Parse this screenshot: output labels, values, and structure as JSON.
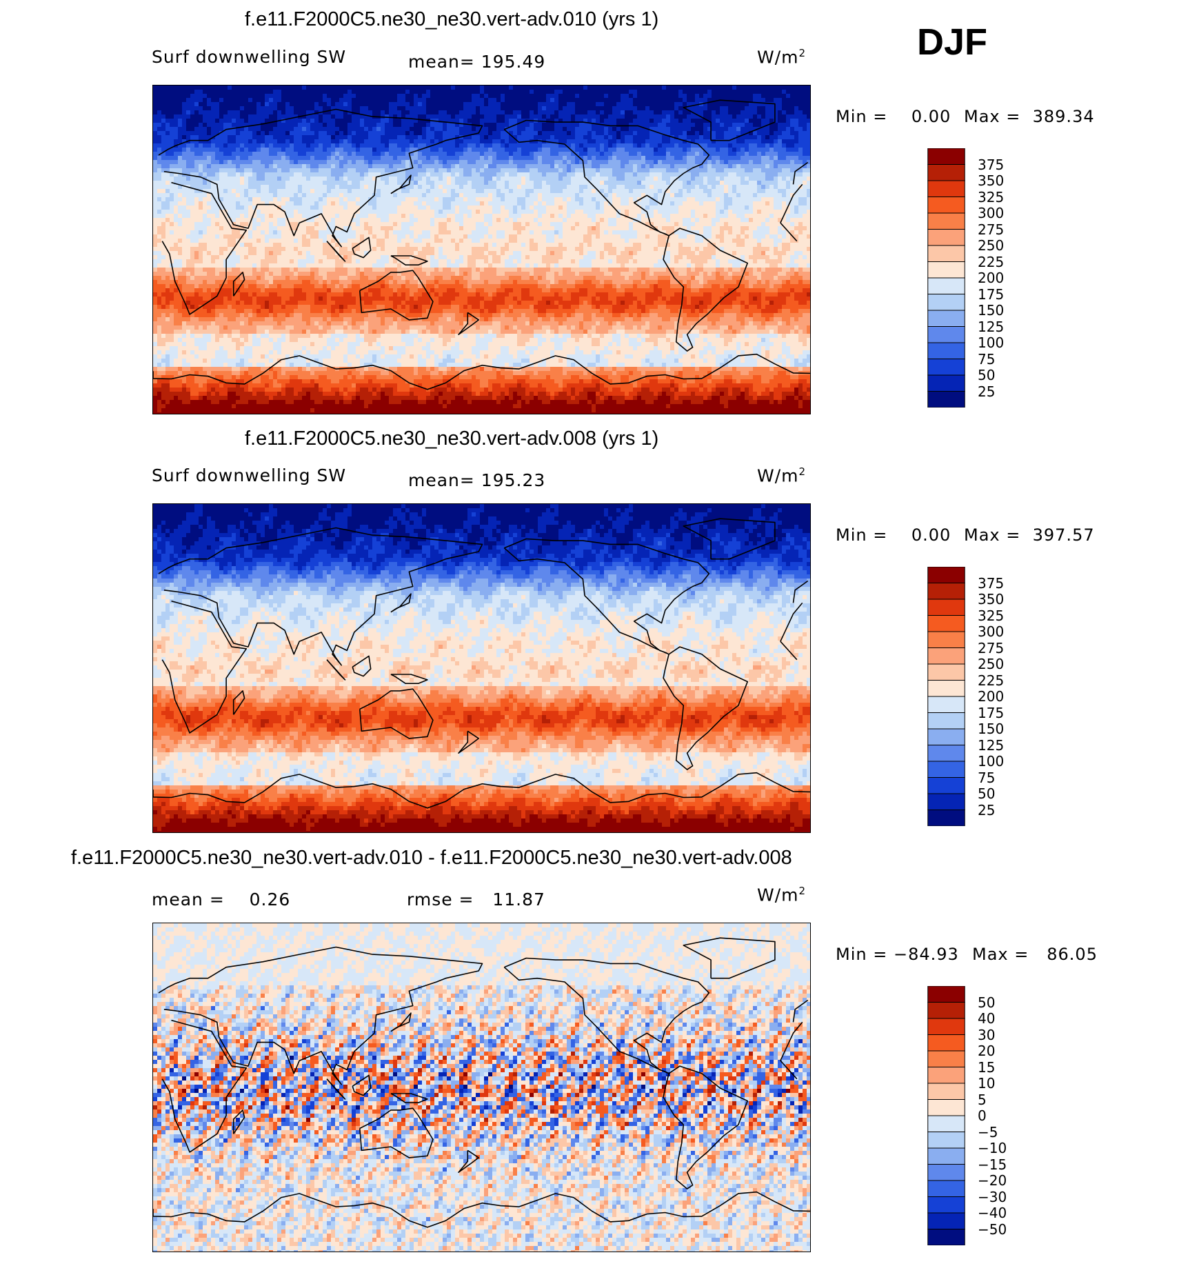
{
  "season": "DJF",
  "panels": [
    {
      "title": "f.e11.F2000C5.ne30_ne30.vert-adv.010 (yrs 1)",
      "variable": "Surf downwelling SW",
      "stat_text": "mean=  195.49",
      "units": "W/m",
      "units_sup": "2",
      "min_label": "Min =",
      "min_value": "0.00",
      "max_label": "Max =",
      "max_value": "389.34",
      "field": "mean"
    },
    {
      "title": "f.e11.F2000C5.ne30_ne30.vert-adv.008 (yrs 1)",
      "variable": "Surf downwelling SW",
      "stat_text": "mean=  195.23",
      "units": "W/m",
      "units_sup": "2",
      "min_label": "Min =",
      "min_value": "0.00",
      "max_label": "Max =",
      "max_value": "397.57",
      "field": "mean"
    },
    {
      "title": "f.e11.F2000C5.ne30_ne30.vert-adv.010 - f.e11.F2000C5.ne30_ne30.vert-adv.008",
      "mean_label": "mean =",
      "mean_value": "0.26",
      "rmse_label": "rmse =",
      "rmse_value": "11.87",
      "units": "W/m",
      "units_sup": "2",
      "min_label": "Min =",
      "min_value": "−84.93",
      "max_label": "Max =",
      "max_value": "86.05",
      "field": "diff"
    }
  ],
  "chart_data": [
    {
      "type": "heatmap",
      "title": "f.e11.F2000C5.ne30_ne30.vert-adv.010 (yrs 1)",
      "variable": "Surf downwelling SW",
      "units": "W/m2",
      "mean": 195.49,
      "min": 0.0,
      "max": 389.34,
      "colorbar_levels": [
        "375",
        "350",
        "325",
        "300",
        "275",
        "250",
        "225",
        "200",
        "175",
        "150",
        "125",
        "100",
        "75",
        "50",
        "25"
      ],
      "colors": [
        "#8b0000",
        "#b52006",
        "#e0380e",
        "#f55b20",
        "#f98048",
        "#fba27a",
        "#fcc7a8",
        "#fde6d4",
        "#d7e7f8",
        "#b3d0f5",
        "#8aaef0",
        "#5f88ec",
        "#3464e4",
        "#1541d6",
        "#0524b5",
        "#000d80"
      ]
    },
    {
      "type": "heatmap",
      "title": "f.e11.F2000C5.ne30_ne30.vert-adv.008 (yrs 1)",
      "variable": "Surf downwelling SW",
      "units": "W/m2",
      "mean": 195.23,
      "min": 0.0,
      "max": 397.57,
      "colorbar_levels": [
        "375",
        "350",
        "325",
        "300",
        "275",
        "250",
        "225",
        "200",
        "175",
        "150",
        "125",
        "100",
        "75",
        "50",
        "25"
      ],
      "colors": [
        "#8b0000",
        "#b52006",
        "#e0380e",
        "#f55b20",
        "#f98048",
        "#fba27a",
        "#fcc7a8",
        "#fde6d4",
        "#d7e7f8",
        "#b3d0f5",
        "#8aaef0",
        "#5f88ec",
        "#3464e4",
        "#1541d6",
        "#0524b5",
        "#000d80"
      ]
    },
    {
      "type": "heatmap",
      "title": "f.e11.F2000C5.ne30_ne30.vert-adv.010 - f.e11.F2000C5.ne30_ne30.vert-adv.008",
      "units": "W/m2",
      "mean": 0.26,
      "rmse": 11.87,
      "min": -84.93,
      "max": 86.05,
      "colorbar_levels": [
        "50",
        "40",
        "30",
        "20",
        "15",
        "10",
        "5",
        "0",
        "−5",
        "−10",
        "−15",
        "−20",
        "−30",
        "−40",
        "−50"
      ],
      "colors": [
        "#8b0000",
        "#b52006",
        "#e0380e",
        "#f55b20",
        "#f98048",
        "#fba27a",
        "#fcc7a8",
        "#fde6d4",
        "#d7e7f8",
        "#b3d0f5",
        "#8aaef0",
        "#5f88ec",
        "#3464e4",
        "#1541d6",
        "#0524b5",
        "#000d80"
      ]
    }
  ]
}
